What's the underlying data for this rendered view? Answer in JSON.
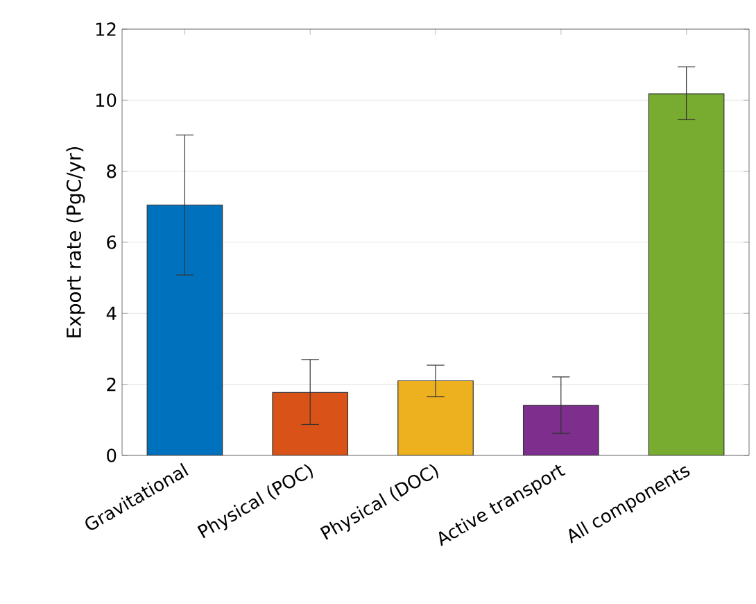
{
  "chart_data": {
    "type": "bar",
    "ylabel": "Export rate (PgC/yr)",
    "categories": [
      "Gravitational",
      "Physical (POC)",
      "Physical (DOC)",
      "Active transport",
      "All components"
    ],
    "values": [
      7.05,
      1.77,
      2.1,
      1.41,
      10.18
    ],
    "colors": [
      "#0072bd",
      "#d95319",
      "#edb120",
      "#7e2f8e",
      "#77ac30"
    ],
    "errors": [
      [
        5.08,
        9.02
      ],
      [
        0.87,
        2.7
      ],
      [
        1.65,
        2.54
      ],
      [
        0.62,
        2.21
      ],
      [
        9.45,
        10.94
      ]
    ],
    "ylim": [
      0,
      12
    ],
    "yticks": [
      0,
      2,
      4,
      6,
      8,
      10,
      12
    ],
    "grid": "y"
  }
}
